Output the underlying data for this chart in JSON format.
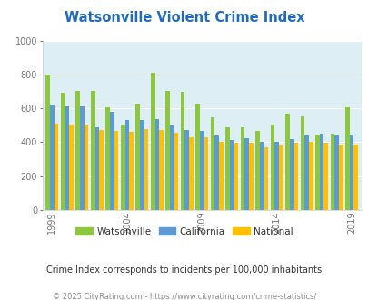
{
  "title": "Watsonville Violent Crime Index",
  "years": [
    1999,
    2000,
    2001,
    2002,
    2003,
    2004,
    2005,
    2006,
    2007,
    2008,
    2009,
    2010,
    2011,
    2012,
    2013,
    2014,
    2015,
    2016,
    2017,
    2018,
    2019
  ],
  "watsonville": [
    800,
    690,
    700,
    700,
    605,
    505,
    630,
    810,
    700,
    695,
    630,
    545,
    490,
    490,
    465,
    505,
    570,
    550,
    445,
    450,
    605
  ],
  "california": [
    620,
    610,
    610,
    490,
    580,
    530,
    530,
    535,
    505,
    470,
    465,
    440,
    415,
    425,
    400,
    400,
    420,
    440,
    450,
    445,
    445
  ],
  "national": [
    510,
    505,
    505,
    470,
    465,
    460,
    475,
    470,
    455,
    430,
    430,
    400,
    395,
    395,
    370,
    380,
    395,
    400,
    395,
    385,
    385
  ],
  "ylim": [
    0,
    1000
  ],
  "yticks": [
    0,
    200,
    400,
    600,
    800,
    1000
  ],
  "xlabel_ticks": [
    1999,
    2004,
    2009,
    2014,
    2019
  ],
  "color_watsonville": "#8dc63f",
  "color_california": "#5b9bd5",
  "color_national": "#ffc000",
  "bg_color": "#deeef5",
  "subtitle": "Crime Index corresponds to incidents per 100,000 inhabitants",
  "footer": "© 2025 CityRating.com - https://www.cityrating.com/crime-statistics/",
  "title_color": "#1f6bbf",
  "subtitle_color": "#333333",
  "footer_color": "#888888",
  "bar_width": 0.28
}
